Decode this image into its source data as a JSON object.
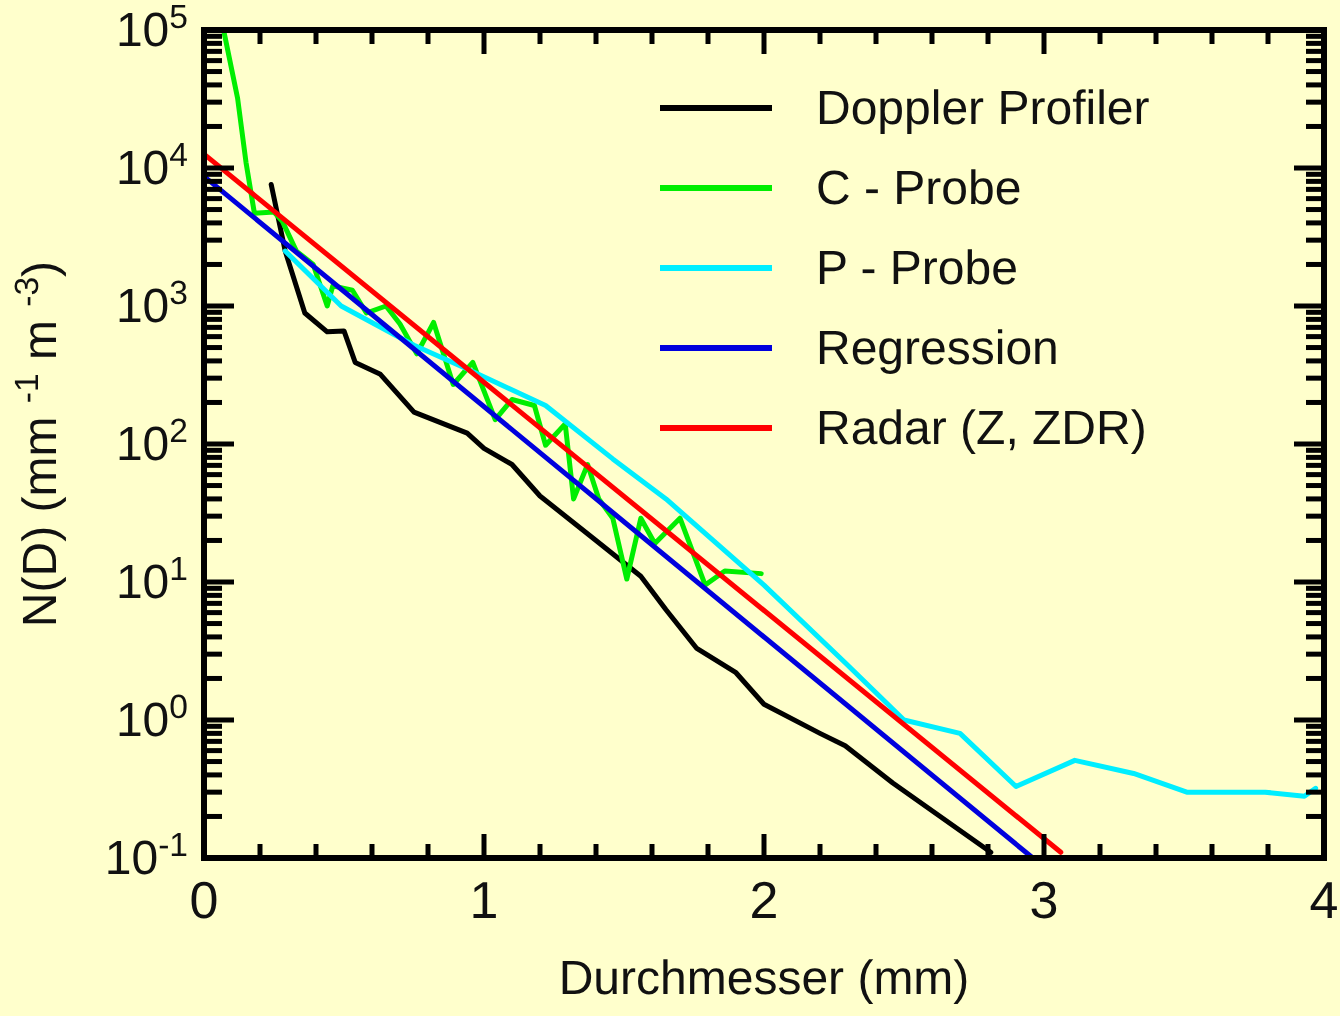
{
  "chart_data": {
    "type": "line",
    "xlabel": "Durchmesser (mm)",
    "ylabel": "N(D) (mm $^{-1}$ m $^{-3}$)",
    "log": "y",
    "grid": false,
    "legend": "top right",
    "line_style": "solid",
    "marker": "none",
    "xlim": [
      0,
      4
    ],
    "ylim": [
      0.1,
      100000
    ],
    "xticks": [
      0,
      {
        "value": 0.2,
        "label": null
      },
      {
        "value": 0.4,
        "label": null
      },
      {
        "value": 0.6,
        "label": null
      },
      {
        "value": 0.8,
        "label": null
      },
      1,
      {
        "value": 1.2,
        "label": null
      },
      {
        "value": 1.4,
        "label": null
      },
      {
        "value": 1.6,
        "label": null
      },
      {
        "value": 1.8,
        "label": null
      },
      2,
      {
        "value": 2.2,
        "label": null
      },
      {
        "value": 2.4,
        "label": null
      },
      {
        "value": 2.6,
        "label": null
      },
      {
        "value": 2.8,
        "label": null
      },
      3,
      {
        "value": 3.2,
        "label": null
      },
      {
        "value": 3.4,
        "label": null
      },
      {
        "value": 3.6,
        "label": null
      },
      {
        "value": 3.8,
        "label": null
      },
      4
    ],
    "yticks": [
      {
        "value": 0.1,
        "label": "10$^{-1}$"
      },
      {
        "value": 0.2,
        "label": null
      },
      {
        "value": 0.3,
        "label": null
      },
      {
        "value": 0.4,
        "label": null
      },
      {
        "value": 0.5,
        "label": null
      },
      {
        "value": 0.6,
        "label": null
      },
      {
        "value": 0.7,
        "label": null
      },
      {
        "value": 0.8,
        "label": null
      },
      {
        "value": 0.9,
        "label": null
      },
      {
        "value": 1,
        "label": "10$^{0}$"
      },
      {
        "value": 2,
        "label": null
      },
      {
        "value": 3,
        "label": null
      },
      {
        "value": 4,
        "label": null
      },
      {
        "value": 5,
        "label": null
      },
      {
        "value": 6,
        "label": null
      },
      {
        "value": 7,
        "label": null
      },
      {
        "value": 8,
        "label": null
      },
      {
        "value": 9,
        "label": null
      },
      {
        "value": 10,
        "label": "10$^{1}$"
      },
      {
        "value": 20,
        "label": null
      },
      {
        "value": 30,
        "label": null
      },
      {
        "value": 40,
        "label": null
      },
      {
        "value": 50,
        "label": null
      },
      {
        "value": 60,
        "label": null
      },
      {
        "value": 70,
        "label": null
      },
      {
        "value": 80,
        "label": null
      },
      {
        "value": 90,
        "label": null
      },
      {
        "value": 100,
        "label": "10$^{2}$"
      },
      {
        "value": 200,
        "label": null
      },
      {
        "value": 300,
        "label": null
      },
      {
        "value": 400,
        "label": null
      },
      {
        "value": 500,
        "label": null
      },
      {
        "value": 600,
        "label": null
      },
      {
        "value": 700,
        "label": null
      },
      {
        "value": 800,
        "label": null
      },
      {
        "value": 900,
        "label": null
      },
      {
        "value": 1000,
        "label": "10$^{3}$"
      },
      {
        "value": 2000,
        "label": null
      },
      {
        "value": 3000,
        "label": null
      },
      {
        "value": 4000,
        "label": null
      },
      {
        "value": 5000,
        "label": null
      },
      {
        "value": 6000,
        "label": null
      },
      {
        "value": 7000,
        "label": null
      },
      {
        "value": 8000,
        "label": null
      },
      {
        "value": 9000,
        "label": null
      },
      {
        "value": 10000,
        "label": "10$^{4}$"
      },
      {
        "value": 20000,
        "label": null
      },
      {
        "value": 30000,
        "label": null
      },
      {
        "value": 40000,
        "label": null
      },
      {
        "value": 50000,
        "label": null
      },
      {
        "value": 60000,
        "label": null
      },
      {
        "value": 70000,
        "label": null
      },
      {
        "value": 80000,
        "label": null
      },
      {
        "value": 90000,
        "label": null
      },
      {
        "value": 100000,
        "label": "10$^{5}$"
      }
    ],
    "series": [
      {
        "name": "Doppler Profiler",
        "color": "#000000",
        "x": [
          0.24,
          0.29,
          0.36,
          0.44,
          0.5,
          0.54,
          0.63,
          0.75,
          0.94,
          1.0,
          1.1,
          1.2,
          1.4,
          1.56,
          1.65,
          1.76,
          1.9,
          2.0,
          2.2,
          2.29,
          2.46,
          2.81
        ],
        "values": [
          7600,
          2500,
          890,
          650,
          660,
          390,
          320,
          170,
          120,
          93,
          71,
          42,
          20,
          11,
          6.3,
          3.3,
          2.2,
          1.3,
          0.8,
          0.65,
          0.35,
          0.11
        ]
      },
      {
        "name": "C - Probe",
        "color": "#00ee00",
        "x": [
          0.07,
          0.12,
          0.15,
          0.18,
          0.25,
          0.28,
          0.33,
          0.39,
          0.44,
          0.46,
          0.53,
          0.58,
          0.65,
          0.7,
          0.76,
          0.82,
          0.89,
          0.96,
          1.04,
          1.1,
          1.18,
          1.22,
          1.29,
          1.32,
          1.37,
          1.41,
          1.46,
          1.51,
          1.56,
          1.61,
          1.7,
          1.79,
          1.86,
          1.99
        ],
        "values": [
          100000,
          32000,
          11000,
          4700,
          4800,
          4100,
          2500,
          2000,
          1000,
          1400,
          1300,
          890,
          1000,
          740,
          450,
          760,
          270,
          390,
          150,
          210,
          190,
          98,
          140,
          40,
          71,
          40,
          29,
          10.5,
          29,
          19,
          29,
          9.5,
          12,
          11.5
        ]
      },
      {
        "name": "P - Probe",
        "color": "#00eeff",
        "x": [
          0.29,
          0.49,
          0.75,
          0.94,
          1.22,
          1.46,
          1.65,
          2.0,
          2.29,
          2.5,
          2.7,
          2.9,
          3.11,
          3.32,
          3.51,
          3.79,
          3.93,
          3.97
        ],
        "values": [
          2500,
          1000,
          520,
          350,
          190,
          78,
          40,
          9.5,
          2.6,
          1.0,
          0.8,
          0.33,
          0.51,
          0.41,
          0.3,
          0.3,
          0.28,
          0.32
        ]
      },
      {
        "name": "Regression",
        "color": "#0000dd",
        "x": [
          0,
          2.96
        ],
        "values": [
          8700,
          0.1
        ]
      },
      {
        "name": "Radar  (Z, ZDR)",
        "color": "#ff0000",
        "x": [
          0,
          3.06
        ],
        "values": [
          12600,
          0.11
        ]
      }
    ]
  }
}
